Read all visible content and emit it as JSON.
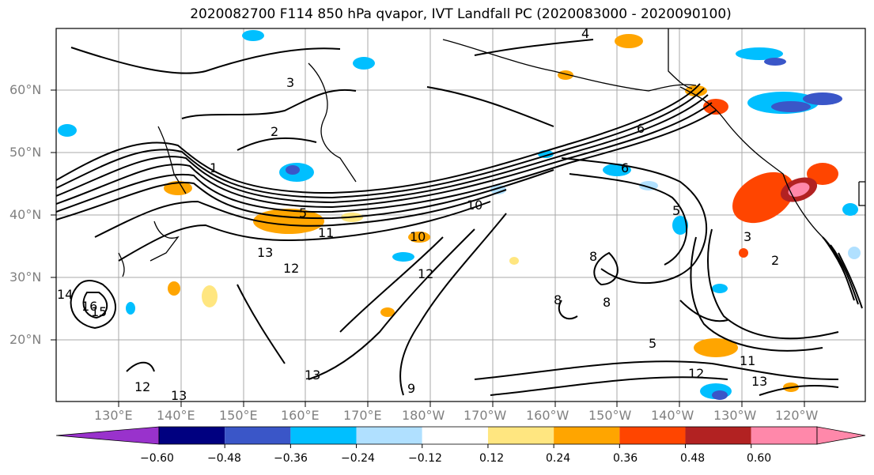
{
  "figure": {
    "title": "2020082700 F114 850 hPa qvapor, IVT Landfall PC (2020083000 - 2020090100)"
  },
  "map": {
    "latitude_labels": [
      "60°N",
      "50°N",
      "40°N",
      "30°N",
      "20°N"
    ],
    "longitude_labels": [
      "130°E",
      "140°E",
      "150°E",
      "160°E",
      "170°E",
      "180°W",
      "170°W",
      "160°W",
      "150°W",
      "140°W",
      "130°W",
      "120°W"
    ],
    "contour_labels": [
      "4",
      "3",
      "2",
      "1",
      "5",
      "6",
      "5",
      "10",
      "11",
      "13",
      "12",
      "10",
      "12",
      "8",
      "16",
      "15",
      "14",
      "8",
      "5",
      "3",
      "2",
      "12",
      "13",
      "9",
      "13",
      "11",
      "13",
      "12",
      "8",
      "6"
    ]
  },
  "colorbar": {
    "labels": [
      "−0.60",
      "−0.48",
      "−0.36",
      "−0.24",
      "−0.12",
      "0.12",
      "0.24",
      "0.36",
      "0.48",
      "0.60"
    ],
    "colors": [
      "#9932cc",
      "#000080",
      "#3a56c8",
      "#00bfff",
      "#b0e0ff",
      "#ffffff",
      "#ffe680",
      "#ffa500",
      "#ff4500",
      "#b22222",
      "#ff88aa",
      "#ff88aa"
    ]
  }
}
